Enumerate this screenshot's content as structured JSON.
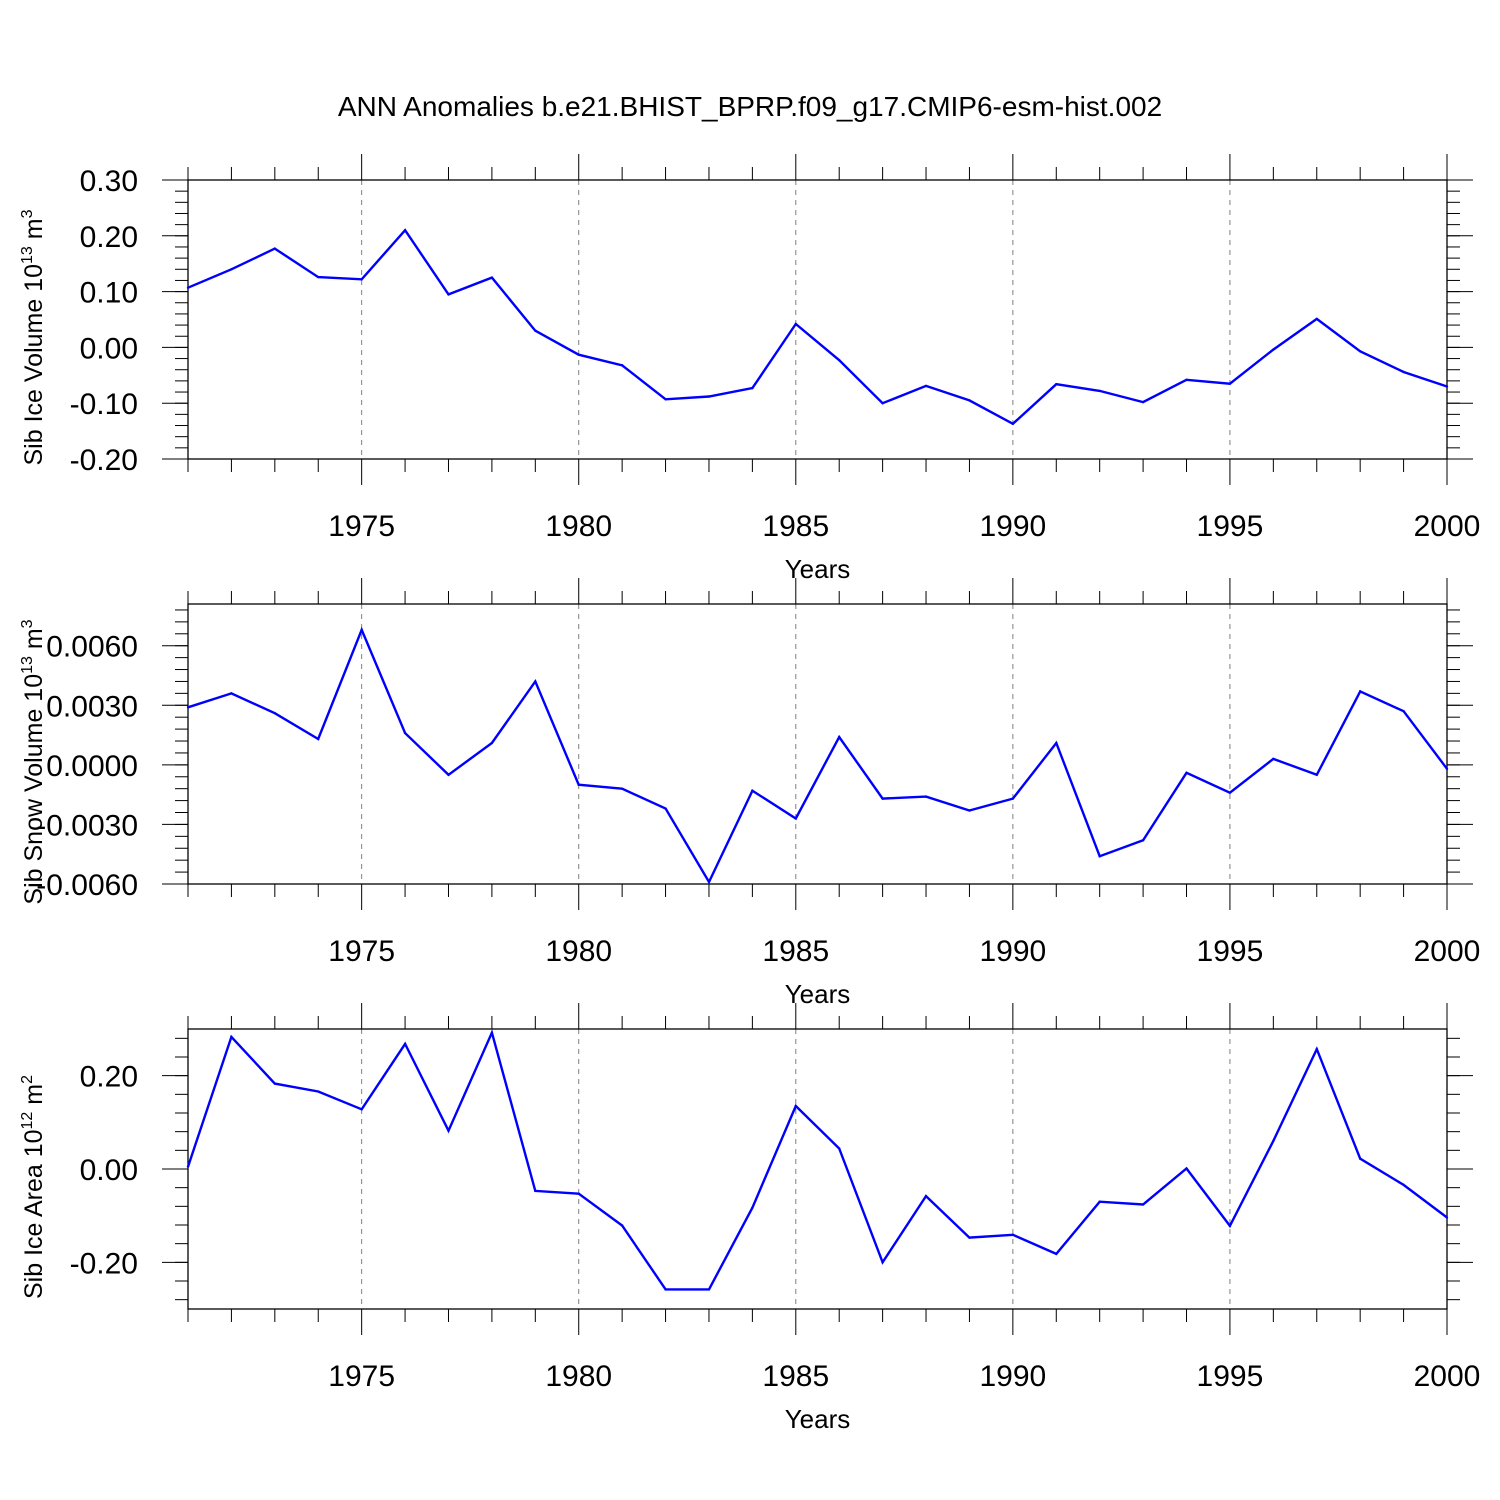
{
  "figure_title": "ANN Anomalies b.e21.BHIST_BPRP.f09_g17.CMIP6-esm-hist.002",
  "colors": {
    "series": "#0000ff",
    "grid": "#808080",
    "axes": "#000000"
  },
  "chart_data": [
    {
      "type": "line",
      "ylabel": "Sib Ice Volume 10",
      "ylabel_sup": "13",
      "ylabel_unit": " m",
      "ylabel_unit_sup": "3",
      "xlabel": "Years",
      "xlim": [
        1971,
        2000
      ],
      "ylim": [
        -0.2,
        0.3
      ],
      "yticks": [
        0.3,
        0.2,
        0.1,
        0.0,
        -0.1,
        -0.2
      ],
      "ytick_labels": [
        "0.30",
        "0.20",
        "0.10",
        "0.00",
        "-0.10",
        "-0.20"
      ],
      "xticks": [
        1975,
        1980,
        1985,
        1990,
        1995,
        2000
      ],
      "xtick_labels": [
        "1975",
        "1980",
        "1985",
        "1990",
        "1995",
        "2000"
      ],
      "grid_x": [
        1975,
        1980,
        1985,
        1990,
        1995
      ],
      "x": [
        1971,
        1972,
        1973,
        1974,
        1975,
        1976,
        1977,
        1978,
        1979,
        1980,
        1981,
        1982,
        1983,
        1984,
        1985,
        1986,
        1987,
        1988,
        1989,
        1990,
        1991,
        1992,
        1993,
        1994,
        1995,
        1996,
        1997,
        1998,
        1999,
        2000
      ],
      "values": [
        0.107,
        0.14,
        0.177,
        0.126,
        0.122,
        0.21,
        0.095,
        0.125,
        0.03,
        -0.013,
        -0.032,
        -0.093,
        -0.088,
        -0.073,
        0.042,
        -0.023,
        -0.1,
        -0.069,
        -0.095,
        -0.137,
        -0.066,
        -0.078,
        -0.098,
        -0.058,
        -0.065,
        -0.004,
        0.051,
        -0.007,
        -0.044,
        -0.07
      ]
    },
    {
      "type": "line",
      "ylabel": "Sib Snow Volume 10",
      "ylabel_sup": "13",
      "ylabel_unit": " m",
      "ylabel_unit_sup": "3",
      "xlabel": "Years",
      "xlim": [
        1971,
        2000
      ],
      "ylim": [
        -0.006,
        0.0081
      ],
      "yticks": [
        0.006,
        0.003,
        0.0,
        -0.003,
        -0.006
      ],
      "ytick_labels": [
        "0.0060",
        "0.0030",
        "0.0000",
        "-0.0030",
        "-0.0060"
      ],
      "xticks": [
        1975,
        1980,
        1985,
        1990,
        1995,
        2000
      ],
      "xtick_labels": [
        "1975",
        "1980",
        "1985",
        "1990",
        "1995",
        "2000"
      ],
      "grid_x": [
        1975,
        1980,
        1985,
        1990,
        1995
      ],
      "x": [
        1971,
        1972,
        1973,
        1974,
        1975,
        1976,
        1977,
        1978,
        1979,
        1980,
        1981,
        1982,
        1983,
        1984,
        1985,
        1986,
        1987,
        1988,
        1989,
        1990,
        1991,
        1992,
        1993,
        1994,
        1995,
        1996,
        1997,
        1998,
        1999,
        2000
      ],
      "values": [
        0.0029,
        0.0036,
        0.0026,
        0.0013,
        0.0068,
        0.0016,
        -0.0005,
        0.0011,
        0.0042,
        -0.001,
        -0.0012,
        -0.0022,
        -0.0059,
        -0.0013,
        -0.0027,
        0.0014,
        -0.0017,
        -0.0016,
        -0.0023,
        -0.0017,
        0.0011,
        -0.0046,
        -0.0038,
        -0.0004,
        -0.0014,
        0.0003,
        -0.0005,
        0.0037,
        0.0027,
        -0.0002
      ]
    },
    {
      "type": "line",
      "ylabel": "Sib Ice Area 10",
      "ylabel_sup": "12",
      "ylabel_unit": " m",
      "ylabel_unit_sup": "2",
      "xlabel": "Years",
      "xlim": [
        1971,
        2000
      ],
      "ylim": [
        -0.3,
        0.3
      ],
      "yticks": [
        0.2,
        0.0,
        -0.2
      ],
      "ytick_labels": [
        "0.20",
        "0.00",
        "-0.20"
      ],
      "xticks": [
        1975,
        1980,
        1985,
        1990,
        1995,
        2000
      ],
      "xtick_labels": [
        "1975",
        "1980",
        "1985",
        "1990",
        "1995",
        "2000"
      ],
      "grid_x": [
        1975,
        1980,
        1985,
        1990,
        1995
      ],
      "x": [
        1971,
        1972,
        1973,
        1974,
        1975,
        1976,
        1977,
        1978,
        1979,
        1980,
        1981,
        1982,
        1983,
        1984,
        1985,
        1986,
        1987,
        1988,
        1989,
        1990,
        1991,
        1992,
        1993,
        1994,
        1995,
        1996,
        1997,
        1998,
        1999,
        2000
      ],
      "values": [
        0.005,
        0.283,
        0.183,
        0.166,
        0.128,
        0.268,
        0.082,
        0.292,
        -0.047,
        -0.053,
        -0.121,
        -0.258,
        -0.258,
        -0.083,
        0.135,
        0.044,
        -0.2,
        -0.058,
        -0.147,
        -0.141,
        -0.182,
        -0.07,
        -0.076,
        0.001,
        -0.122,
        0.06,
        0.257,
        0.022,
        -0.034,
        -0.104
      ]
    }
  ]
}
